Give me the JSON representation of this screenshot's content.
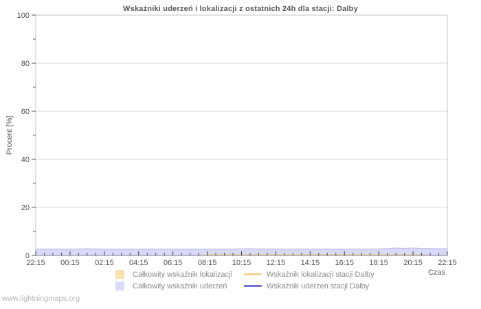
{
  "page": {
    "watermark": "www.lightningmaps.org"
  },
  "chart_data": {
    "type": "area",
    "title": "Wskaźniki uderzeń i lokalizacji z ostatnich 24h dla stacji: Dalby",
    "xlabel": "Czas",
    "ylabel": "Procent  [%]",
    "ylim": [
      0,
      100
    ],
    "x_span_hours": 24,
    "x_step_hours": 0.5,
    "x_tick_labels": [
      "22:15",
      "00:15",
      "02:15",
      "04:15",
      "06:15",
      "08:15",
      "10:15",
      "12:15",
      "14:15",
      "16:15",
      "18:15",
      "20:15",
      "22:15"
    ],
    "x_major_step_hours": 2,
    "x_minor_step_hours": 0.5,
    "y_major_ticks": [
      0,
      20,
      40,
      60,
      80,
      100
    ],
    "y_minor_ticks": [
      10,
      30,
      50,
      70,
      90
    ],
    "y_tick_labels": [
      "0",
      "20",
      "40",
      "60",
      "80",
      "100"
    ],
    "grid": "horizontal",
    "legend_position": "bottom",
    "colors": {
      "grid": "#d9d9d9",
      "frame": "#c4c4c4",
      "tick": "#3a3a3a",
      "tick_label": "#4d4d4d",
      "axis_label": "#555555"
    },
    "draw_order": [
      1,
      0,
      2,
      3
    ],
    "series": [
      {
        "name": "Całkowity wskaźnik lokalizacji",
        "type": "area",
        "fill": "#f9e2b2",
        "stroke": "#ecce96",
        "values": [
          0,
          0,
          0,
          0,
          0,
          0,
          0,
          0,
          0,
          0,
          0,
          0,
          0,
          0,
          0,
          0,
          0,
          0,
          0,
          0,
          0.4,
          0.4,
          0.4,
          0.4,
          0.4,
          0.4,
          0.4,
          0.4,
          0.4,
          0.4,
          0.4,
          0.4,
          0.4,
          0.4,
          0.4,
          0.4,
          0.4,
          0.4,
          0.4,
          0.4,
          0.4,
          0.4,
          0.4,
          0.4,
          0.4,
          0.4,
          0,
          0,
          0
        ]
      },
      {
        "name": "Całkowity wskaźnik uderzeń",
        "type": "area",
        "fill": "#d9d9f8",
        "stroke": "#b4b4e8",
        "values": [
          2.6,
          2.6,
          2.6,
          2.6,
          2.65,
          2.7,
          2.8,
          2.7,
          2.6,
          2.6,
          2.6,
          2.6,
          2.6,
          2.65,
          2.6,
          2.6,
          2.6,
          2.6,
          2.6,
          2.6,
          2.6,
          2.65,
          2.6,
          2.6,
          2.75,
          2.8,
          2.7,
          2.65,
          2.7,
          2.6,
          2.6,
          2.65,
          2.6,
          2.6,
          2.65,
          2.6,
          2.6,
          2.65,
          2.6,
          2.6,
          2.7,
          2.9,
          3.1,
          3.0,
          3.1,
          3.0,
          2.9,
          2.8,
          2.9
        ]
      },
      {
        "name": "Wskaźnik lokalizacji stacji Dalby",
        "type": "line",
        "stroke": "#f6d18c",
        "values": [
          0,
          0,
          0,
          0,
          0,
          0,
          0,
          0,
          0,
          0,
          0,
          0,
          0,
          0,
          0,
          0,
          0,
          0,
          0,
          0,
          0,
          0,
          0,
          0,
          0,
          0,
          0,
          0,
          0,
          0,
          0,
          0,
          0,
          0,
          0,
          0,
          0,
          0,
          0,
          0,
          0,
          0,
          0,
          0,
          0,
          0,
          0,
          0,
          0
        ]
      },
      {
        "name": "Wskaźnik uderzeń stacji Dalby",
        "type": "line",
        "stroke": "#7171d8",
        "values": [
          0,
          0,
          0,
          0,
          0,
          0,
          0,
          0,
          0,
          0,
          0,
          0,
          0,
          0,
          0,
          0,
          0,
          0,
          0,
          0,
          0,
          0,
          0,
          0,
          0,
          0,
          0,
          0,
          0,
          0,
          0,
          0,
          0,
          0,
          0,
          0,
          0,
          0,
          0,
          0,
          0,
          0,
          0,
          0,
          0,
          0,
          0,
          0,
          0
        ]
      }
    ]
  }
}
